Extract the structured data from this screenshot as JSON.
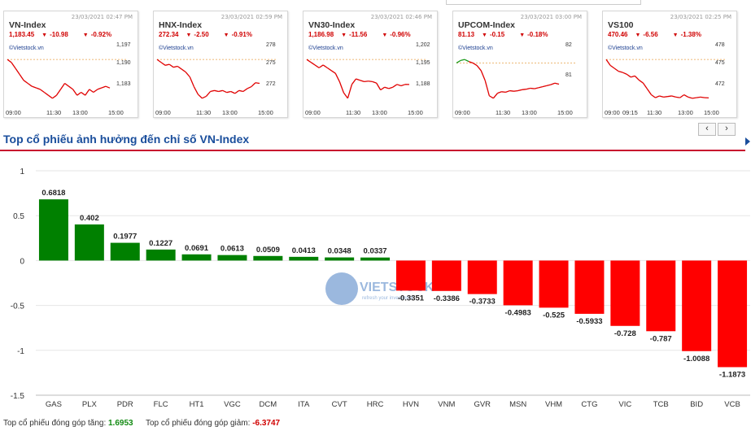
{
  "index_cards": [
    {
      "name": "VN-Index",
      "timestamp": "23/03/2021 02:47 PM",
      "value": "1,183.45",
      "change": "-10.98",
      "pct": "-0.92%",
      "brand": "©Vietstock.vn",
      "yticks": [
        "1,197",
        "1,190",
        "1,183"
      ],
      "xticks": [
        "09:00",
        "11:30",
        "13:00",
        "15:00"
      ],
      "series": [
        1193,
        1192,
        1190,
        1188,
        1186,
        1185,
        1184,
        1183.5,
        1183,
        1182,
        1181,
        1180,
        1181,
        1183,
        1185,
        1184,
        1183,
        1181,
        1182,
        1181,
        1183,
        1182,
        1183,
        1183.5,
        1184,
        1183.45
      ]
    },
    {
      "name": "HNX-Index",
      "timestamp": "23/03/2021 02:59 PM",
      "value": "272.34",
      "change": "-2.50",
      "pct": "-0.91%",
      "brand": "©Vietstock.vn",
      "yticks": [
        "278",
        "275",
        "272"
      ],
      "xticks": [
        "09:00",
        "11:30",
        "13:00",
        "15:00"
      ],
      "series": [
        274.8,
        274.5,
        274.2,
        274.3,
        274,
        274.1,
        273.8,
        273.5,
        273,
        272,
        271.2,
        270.8,
        271,
        271.5,
        271.6,
        271.5,
        271.6,
        271.4,
        271.5,
        271.3,
        271.6,
        271.5,
        271.8,
        272,
        272.4,
        272.34
      ]
    },
    {
      "name": "VN30-Index",
      "timestamp": "23/03/2021 02:46 PM",
      "value": "1,186.98",
      "change": "-11.56",
      "pct": "-0.96%",
      "brand": "©Vietstock.vn",
      "yticks": [
        "1,202",
        "1,195",
        "1,188"
      ],
      "xticks": [
        "09:00",
        "11:30",
        "13:00",
        "15:00"
      ],
      "series": [
        1196,
        1195,
        1194,
        1193,
        1194,
        1193,
        1192,
        1191,
        1188,
        1184,
        1182,
        1187,
        1189,
        1188.5,
        1188,
        1188.2,
        1188,
        1187.5,
        1185,
        1186,
        1185.5,
        1186,
        1187,
        1186.5,
        1187,
        1186.98
      ]
    },
    {
      "name": "UPCOM-Index",
      "timestamp": "23/03/2021 03:00 PM",
      "value": "81.13",
      "change": "-0.15",
      "pct": "-0.18%",
      "brand": "©Vietstock.vn",
      "yticks": [
        "82",
        "81"
      ],
      "xticks": [
        "09:00",
        "11:30",
        "13:00",
        "15:00"
      ],
      "series": [
        81.55,
        81.6,
        81.62,
        81.58,
        81.55,
        81.5,
        81.4,
        81.2,
        80.9,
        80.85,
        80.95,
        80.98,
        80.97,
        81,
        80.99,
        81,
        81.02,
        81.03,
        81.05,
        81.04,
        81.06,
        81.08,
        81.1,
        81.12,
        81.15,
        81.13
      ]
    },
    {
      "name": "VS100",
      "timestamp": "23/03/2021 02:25 PM",
      "value": "470.46",
      "change": "-6.56",
      "pct": "-1.38%",
      "brand": "©Vietstock.vn",
      "yticks": [
        "478",
        "475",
        "472"
      ],
      "xticks": [
        "09:00",
        "09:15",
        "11:30",
        "13:00",
        "15:00"
      ],
      "series": [
        477,
        476,
        475.5,
        475,
        474.8,
        474.5,
        474,
        474.2,
        473.5,
        473,
        472,
        471,
        470.5,
        470.8,
        470.6,
        470.7,
        470.8,
        470.6,
        470.5,
        471,
        470.6,
        470.4,
        470.5,
        470.6,
        470.5,
        470.46
      ]
    }
  ],
  "pager": {
    "prev": "‹",
    "next": "›"
  },
  "section_title": "Top cổ phiếu ảnh hưởng đến chỉ số VN-Index",
  "chart_data": {
    "type": "bar",
    "title": "Top cổ phiếu ảnh hưởng đến chỉ số VN-Index",
    "categories": [
      "GAS",
      "PLX",
      "PDR",
      "FLC",
      "HT1",
      "VGC",
      "DCM",
      "ITA",
      "CVT",
      "HRC",
      "HVN",
      "VNM",
      "GVR",
      "MSN",
      "VHM",
      "CTG",
      "VIC",
      "TCB",
      "BID",
      "VCB"
    ],
    "values": [
      0.6818,
      0.402,
      0.1977,
      0.1227,
      0.0691,
      0.0613,
      0.0509,
      0.0413,
      0.0348,
      0.0337,
      -0.3351,
      -0.3386,
      -0.3733,
      -0.4983,
      -0.525,
      -0.5933,
      -0.728,
      -0.787,
      -1.0088,
      -1.1873
    ],
    "value_labels": [
      "0.6818",
      "0.402",
      "0.1977",
      "0.1227",
      "0.0691",
      "0.0613",
      "0.0509",
      "0.0413",
      "0.0348",
      "0.0337",
      "-0.3351",
      "-0.3386",
      "-0.3733",
      "-0.4983",
      "-0.525",
      "-0.5933",
      "-0.728",
      "-0.787",
      "-1.0088",
      "-1.1873"
    ],
    "ylim": [
      -1.5,
      1
    ],
    "yticks": [
      1,
      0.5,
      0,
      -0.5,
      -1,
      -1.5
    ],
    "ytick_labels": [
      "1",
      "0.5",
      "0",
      "-0.5",
      "-1",
      "-1.5"
    ],
    "grid": true,
    "colors": {
      "positive": "#008000",
      "negative": "#ff0000"
    }
  },
  "watermark": {
    "text": "VIETSTOCK",
    "tagline": "refresh your investment"
  },
  "footer": {
    "gain_label": "Top cổ phiếu đóng góp tăng:",
    "gain_value": "1.6953",
    "loss_label": "Top cổ phiếu đóng góp giảm:",
    "loss_value": "-6.3747"
  }
}
